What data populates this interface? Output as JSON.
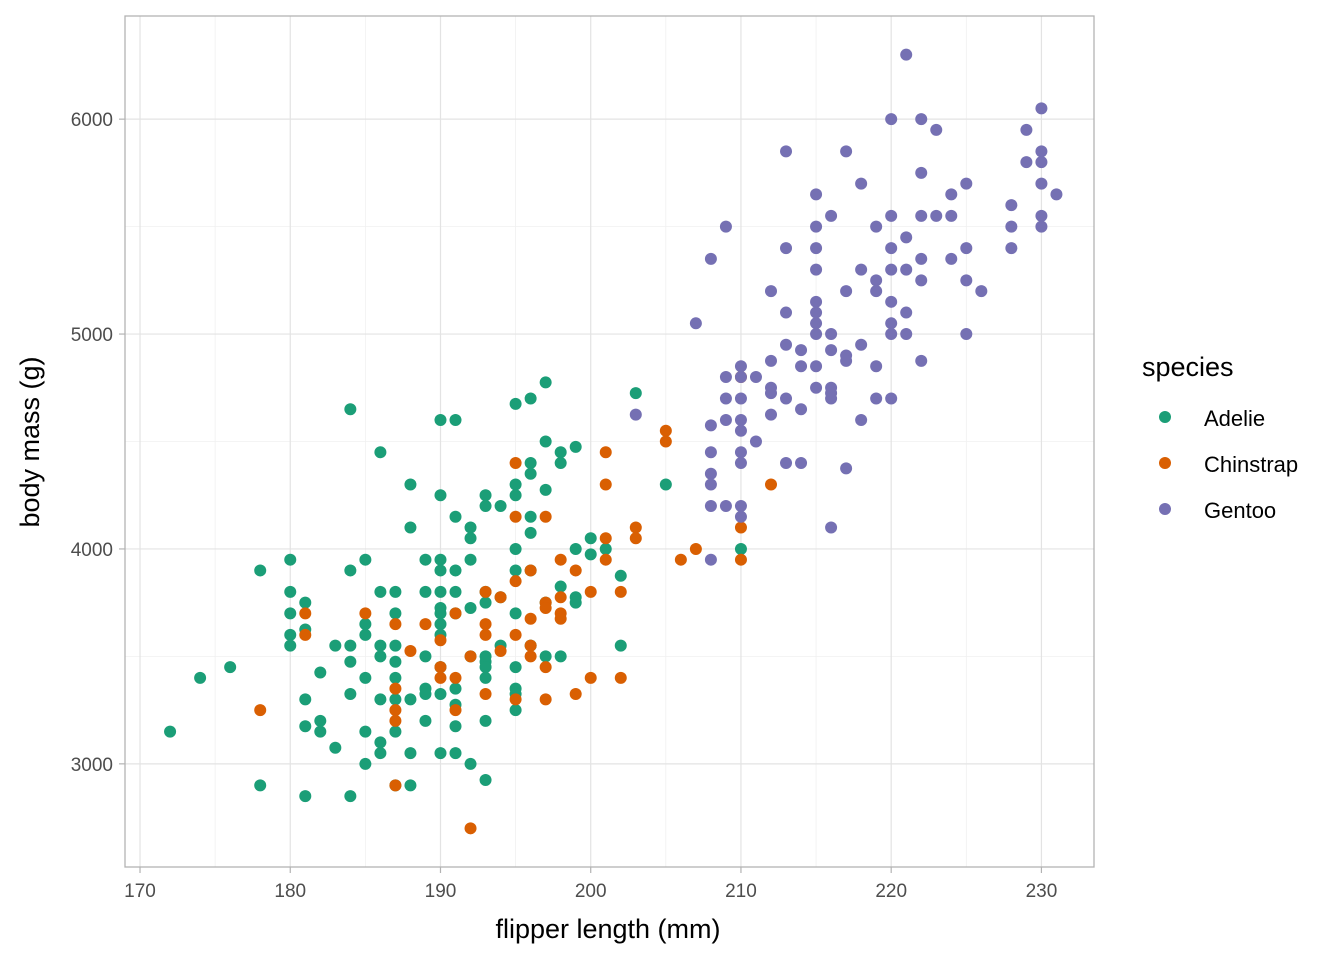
{
  "chart_data": {
    "type": "scatter",
    "title": "",
    "xlabel": "flipper length (mm)",
    "ylabel": "body mass (g)",
    "xlim": [
      169,
      233.5
    ],
    "ylim": [
      2520,
      6480
    ],
    "x_ticks": [
      170,
      180,
      190,
      200,
      210,
      220,
      230
    ],
    "y_ticks": [
      3000,
      4000,
      5000,
      6000
    ],
    "grid": true,
    "legend": {
      "title": "species",
      "placement": "right"
    },
    "series": [
      {
        "name": "Adelie",
        "color": "#1b9e77",
        "points": [
          [
            172,
            3150
          ],
          [
            174,
            3400
          ],
          [
            176,
            3450
          ],
          [
            178,
            3900
          ],
          [
            178,
            2900
          ],
          [
            180,
            3950
          ],
          [
            180,
            3800
          ],
          [
            180,
            3700
          ],
          [
            180,
            3600
          ],
          [
            180,
            3550
          ],
          [
            181,
            3750
          ],
          [
            181,
            3625
          ],
          [
            181,
            3300
          ],
          [
            181,
            3175
          ],
          [
            181,
            2850
          ],
          [
            182,
            3425
          ],
          [
            182,
            3200
          ],
          [
            182,
            3150
          ],
          [
            183,
            3550
          ],
          [
            183,
            3075
          ],
          [
            184,
            4650
          ],
          [
            184,
            3900
          ],
          [
            184,
            3550
          ],
          [
            184,
            3475
          ],
          [
            184,
            3325
          ],
          [
            184,
            2850
          ],
          [
            185,
            3950
          ],
          [
            185,
            3650
          ],
          [
            185,
            3600
          ],
          [
            185,
            3400
          ],
          [
            185,
            3150
          ],
          [
            185,
            3000
          ],
          [
            186,
            4450
          ],
          [
            186,
            3800
          ],
          [
            186,
            3550
          ],
          [
            186,
            3500
          ],
          [
            186,
            3300
          ],
          [
            186,
            3100
          ],
          [
            186,
            3050
          ],
          [
            187,
            3800
          ],
          [
            187,
            3700
          ],
          [
            187,
            3550
          ],
          [
            187,
            3475
          ],
          [
            187,
            3400
          ],
          [
            187,
            3300
          ],
          [
            187,
            3150
          ],
          [
            187,
            2900
          ],
          [
            188,
            4300
          ],
          [
            188,
            4100
          ],
          [
            188,
            3300
          ],
          [
            188,
            3050
          ],
          [
            188,
            2900
          ],
          [
            189,
            3950
          ],
          [
            189,
            3800
          ],
          [
            189,
            3500
          ],
          [
            189,
            3350
          ],
          [
            189,
            3325
          ],
          [
            189,
            3200
          ],
          [
            190,
            4600
          ],
          [
            190,
            4250
          ],
          [
            190,
            3950
          ],
          [
            190,
            3900
          ],
          [
            190,
            3800
          ],
          [
            190,
            3725
          ],
          [
            190,
            3700
          ],
          [
            190,
            3650
          ],
          [
            190,
            3600
          ],
          [
            190,
            3450
          ],
          [
            190,
            3325
          ],
          [
            190,
            3050
          ],
          [
            191,
            4600
          ],
          [
            191,
            4150
          ],
          [
            191,
            3900
          ],
          [
            191,
            3800
          ],
          [
            191,
            3700
          ],
          [
            191,
            3350
          ],
          [
            191,
            3275
          ],
          [
            191,
            3175
          ],
          [
            191,
            3050
          ],
          [
            192,
            4100
          ],
          [
            192,
            4050
          ],
          [
            192,
            3950
          ],
          [
            192,
            3725
          ],
          [
            192,
            3500
          ],
          [
            192,
            3000
          ],
          [
            193,
            4250
          ],
          [
            193,
            4200
          ],
          [
            193,
            3800
          ],
          [
            193,
            3750
          ],
          [
            193,
            3500
          ],
          [
            193,
            3475
          ],
          [
            193,
            3450
          ],
          [
            193,
            3400
          ],
          [
            193,
            3200
          ],
          [
            193,
            2925
          ],
          [
            194,
            4200
          ],
          [
            194,
            3775
          ],
          [
            194,
            3550
          ],
          [
            195,
            4675
          ],
          [
            195,
            4300
          ],
          [
            195,
            4250
          ],
          [
            195,
            4000
          ],
          [
            195,
            3900
          ],
          [
            195,
            3700
          ],
          [
            195,
            3450
          ],
          [
            195,
            3350
          ],
          [
            195,
            3325
          ],
          [
            195,
            3250
          ],
          [
            196,
            4700
          ],
          [
            196,
            4400
          ],
          [
            196,
            4350
          ],
          [
            196,
            4150
          ],
          [
            196,
            4075
          ],
          [
            196,
            3900
          ],
          [
            196,
            3550
          ],
          [
            197,
            4775
          ],
          [
            197,
            4500
          ],
          [
            197,
            4275
          ],
          [
            197,
            3750
          ],
          [
            197,
            3500
          ],
          [
            198,
            4450
          ],
          [
            198,
            4400
          ],
          [
            198,
            3825
          ],
          [
            198,
            3500
          ],
          [
            199,
            4475
          ],
          [
            199,
            4000
          ],
          [
            199,
            3775
          ],
          [
            199,
            3750
          ],
          [
            200,
            4050
          ],
          [
            200,
            3975
          ],
          [
            201,
            4000
          ],
          [
            202,
            3875
          ],
          [
            202,
            3550
          ],
          [
            203,
            4725
          ],
          [
            205,
            4300
          ],
          [
            210,
            4000
          ]
        ]
      },
      {
        "name": "Chinstrap",
        "color": "#d95f02",
        "points": [
          [
            178,
            3250
          ],
          [
            181,
            3700
          ],
          [
            181,
            3600
          ],
          [
            185,
            3700
          ],
          [
            187,
            3650
          ],
          [
            187,
            3350
          ],
          [
            187,
            3250
          ],
          [
            187,
            3200
          ],
          [
            187,
            2900
          ],
          [
            188,
            3525
          ],
          [
            189,
            3650
          ],
          [
            190,
            3575
          ],
          [
            190,
            3450
          ],
          [
            190,
            3400
          ],
          [
            191,
            3700
          ],
          [
            191,
            3400
          ],
          [
            191,
            3250
          ],
          [
            192,
            3500
          ],
          [
            192,
            2700
          ],
          [
            193,
            3800
          ],
          [
            193,
            3650
          ],
          [
            193,
            3600
          ],
          [
            193,
            3325
          ],
          [
            194,
            3775
          ],
          [
            194,
            3525
          ],
          [
            195,
            4400
          ],
          [
            195,
            4150
          ],
          [
            195,
            3850
          ],
          [
            195,
            3600
          ],
          [
            195,
            3300
          ],
          [
            196,
            3900
          ],
          [
            196,
            3675
          ],
          [
            196,
            3550
          ],
          [
            196,
            3500
          ],
          [
            197,
            4150
          ],
          [
            197,
            3750
          ],
          [
            197,
            3725
          ],
          [
            197,
            3450
          ],
          [
            197,
            3300
          ],
          [
            198,
            3950
          ],
          [
            198,
            3775
          ],
          [
            198,
            3700
          ],
          [
            198,
            3675
          ],
          [
            199,
            3900
          ],
          [
            199,
            3325
          ],
          [
            200,
            3800
          ],
          [
            200,
            3400
          ],
          [
            201,
            4450
          ],
          [
            201,
            4300
          ],
          [
            201,
            4050
          ],
          [
            201,
            3950
          ],
          [
            202,
            3800
          ],
          [
            202,
            3400
          ],
          [
            203,
            4100
          ],
          [
            203,
            4050
          ],
          [
            205,
            4550
          ],
          [
            205,
            4500
          ],
          [
            206,
            3950
          ],
          [
            207,
            4000
          ],
          [
            210,
            4800
          ],
          [
            210,
            4100
          ],
          [
            210,
            3950
          ],
          [
            212,
            4300
          ]
        ]
      },
      {
        "name": "Gentoo",
        "color": "#7570b3",
        "points": [
          [
            203,
            4625
          ],
          [
            207,
            5050
          ],
          [
            208,
            5350
          ],
          [
            208,
            4575
          ],
          [
            208,
            4450
          ],
          [
            208,
            4350
          ],
          [
            208,
            4300
          ],
          [
            208,
            4200
          ],
          [
            208,
            3950
          ],
          [
            209,
            5500
          ],
          [
            209,
            4800
          ],
          [
            209,
            4700
          ],
          [
            209,
            4600
          ],
          [
            209,
            4200
          ],
          [
            210,
            4850
          ],
          [
            210,
            4800
          ],
          [
            210,
            4700
          ],
          [
            210,
            4600
          ],
          [
            210,
            4550
          ],
          [
            210,
            4450
          ],
          [
            210,
            4400
          ],
          [
            210,
            4200
          ],
          [
            210,
            4150
          ],
          [
            211,
            4800
          ],
          [
            211,
            4500
          ],
          [
            212,
            5200
          ],
          [
            212,
            4875
          ],
          [
            212,
            4750
          ],
          [
            212,
            4725
          ],
          [
            212,
            4625
          ],
          [
            213,
            5850
          ],
          [
            213,
            5400
          ],
          [
            213,
            5100
          ],
          [
            213,
            4950
          ],
          [
            213,
            4700
          ],
          [
            213,
            4400
          ],
          [
            214,
            4925
          ],
          [
            214,
            4850
          ],
          [
            214,
            4650
          ],
          [
            214,
            4400
          ],
          [
            215,
            5650
          ],
          [
            215,
            5500
          ],
          [
            215,
            5400
          ],
          [
            215,
            5300
          ],
          [
            215,
            5150
          ],
          [
            215,
            5100
          ],
          [
            215,
            5050
          ],
          [
            215,
            5000
          ],
          [
            215,
            4850
          ],
          [
            215,
            4750
          ],
          [
            216,
            5550
          ],
          [
            216,
            5000
          ],
          [
            216,
            4925
          ],
          [
            216,
            4750
          ],
          [
            216,
            4725
          ],
          [
            216,
            4700
          ],
          [
            216,
            4100
          ],
          [
            217,
            5850
          ],
          [
            217,
            5200
          ],
          [
            217,
            4900
          ],
          [
            217,
            4875
          ],
          [
            217,
            4375
          ],
          [
            218,
            5700
          ],
          [
            218,
            5300
          ],
          [
            218,
            4950
          ],
          [
            218,
            4600
          ],
          [
            219,
            5500
          ],
          [
            219,
            5250
          ],
          [
            219,
            5200
          ],
          [
            219,
            4850
          ],
          [
            219,
            4700
          ],
          [
            220,
            6000
          ],
          [
            220,
            5550
          ],
          [
            220,
            5400
          ],
          [
            220,
            5300
          ],
          [
            220,
            5150
          ],
          [
            220,
            5050
          ],
          [
            220,
            5000
          ],
          [
            220,
            4700
          ],
          [
            221,
            6300
          ],
          [
            221,
            5450
          ],
          [
            221,
            5300
          ],
          [
            221,
            5100
          ],
          [
            221,
            5000
          ],
          [
            222,
            6000
          ],
          [
            222,
            5750
          ],
          [
            222,
            5550
          ],
          [
            222,
            5350
          ],
          [
            222,
            5250
          ],
          [
            222,
            4875
          ],
          [
            223,
            5950
          ],
          [
            223,
            5550
          ],
          [
            224,
            5650
          ],
          [
            224,
            5550
          ],
          [
            224,
            5350
          ],
          [
            225,
            5700
          ],
          [
            225,
            5400
          ],
          [
            225,
            5250
          ],
          [
            225,
            5000
          ],
          [
            226,
            5200
          ],
          [
            228,
            5600
          ],
          [
            228,
            5500
          ],
          [
            228,
            5400
          ],
          [
            229,
            5950
          ],
          [
            229,
            5800
          ],
          [
            230,
            6050
          ],
          [
            230,
            5850
          ],
          [
            230,
            5800
          ],
          [
            230,
            5700
          ],
          [
            230,
            5550
          ],
          [
            230,
            5500
          ],
          [
            231,
            5650
          ]
        ]
      }
    ]
  }
}
